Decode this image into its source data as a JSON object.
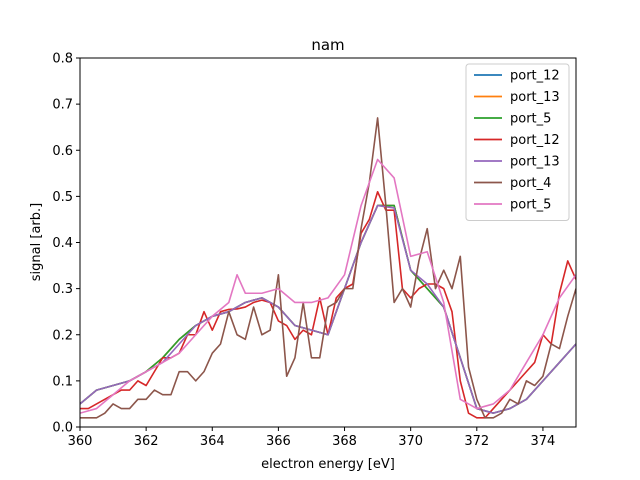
{
  "chart_data": {
    "type": "line",
    "title": "nam",
    "xlabel": "electron energy [eV]",
    "ylabel": "signal [arb.]",
    "xlim": [
      360,
      375
    ],
    "ylim": [
      0,
      0.8
    ],
    "xticks": [
      "360",
      "362",
      "364",
      "366",
      "368",
      "370",
      "372",
      "374"
    ],
    "yticks": [
      "0.0",
      "0.1",
      "0.2",
      "0.3",
      "0.4",
      "0.5",
      "0.6",
      "0.7",
      "0.8"
    ],
    "legend_position": "top-right",
    "series": [
      {
        "name": "port_12",
        "color": "#1f77b4",
        "x": [
          360,
          360.5,
          361,
          361.5,
          362,
          362.5,
          363,
          363.5,
          364,
          364.5,
          365,
          365.5,
          366,
          366.5,
          367,
          367.5,
          368,
          368.5,
          369,
          369.5,
          370,
          370.5,
          371,
          371.5,
          372,
          372.5,
          373,
          373.5,
          374,
          374.5,
          375
        ],
        "y": [
          0.05,
          0.08,
          0.09,
          0.1,
          0.12,
          0.15,
          0.19,
          0.22,
          0.24,
          0.25,
          0.27,
          0.28,
          0.26,
          0.22,
          0.21,
          0.2,
          0.3,
          0.4,
          0.48,
          0.48,
          0.34,
          0.3,
          0.26,
          0.15,
          0.04,
          0.03,
          0.04,
          0.06,
          0.1,
          0.14,
          0.18
        ]
      },
      {
        "name": "port_13",
        "color": "#ff7f0e",
        "x": [
          360,
          360.5,
          361,
          361.5,
          362,
          362.5,
          363,
          363.5,
          364,
          364.5,
          365,
          365.5,
          366,
          366.5,
          367,
          367.5,
          368,
          368.5,
          369,
          369.5,
          370,
          370.5,
          371,
          371.5,
          372,
          372.5,
          373,
          373.5,
          374,
          374.5,
          375
        ],
        "y": [
          0.05,
          0.08,
          0.09,
          0.1,
          0.12,
          0.15,
          0.19,
          0.22,
          0.24,
          0.25,
          0.27,
          0.28,
          0.26,
          0.22,
          0.21,
          0.2,
          0.3,
          0.4,
          0.48,
          0.48,
          0.34,
          0.3,
          0.26,
          0.15,
          0.04,
          0.03,
          0.04,
          0.06,
          0.1,
          0.14,
          0.18
        ]
      },
      {
        "name": "port_5",
        "color": "#2ca02c",
        "x": [
          360,
          360.5,
          361,
          361.5,
          362,
          362.5,
          363,
          363.5,
          364,
          364.5,
          365,
          365.5,
          366,
          366.5,
          367,
          367.5,
          368,
          368.5,
          369,
          369.5,
          370,
          370.5,
          371,
          371.5,
          372,
          372.5,
          373,
          373.5,
          374,
          374.5,
          375
        ],
        "y": [
          0.05,
          0.08,
          0.09,
          0.1,
          0.12,
          0.15,
          0.19,
          0.22,
          0.24,
          0.25,
          0.27,
          0.28,
          0.26,
          0.22,
          0.21,
          0.2,
          0.3,
          0.4,
          0.48,
          0.48,
          0.34,
          0.3,
          0.26,
          0.15,
          0.04,
          0.03,
          0.04,
          0.06,
          0.1,
          0.14,
          0.18
        ]
      },
      {
        "name": "port_12",
        "color": "#d62728",
        "x": [
          360,
          360.25,
          360.5,
          360.75,
          361,
          361.25,
          361.5,
          361.75,
          362,
          362.25,
          362.5,
          362.75,
          363,
          363.25,
          363.5,
          363.75,
          364,
          364.25,
          364.5,
          364.75,
          365,
          365.25,
          365.5,
          365.75,
          366,
          366.25,
          366.5,
          366.75,
          367,
          367.25,
          367.5,
          367.75,
          368,
          368.25,
          368.5,
          368.75,
          369,
          369.25,
          369.5,
          369.75,
          370,
          370.25,
          370.5,
          370.75,
          371,
          371.25,
          371.5,
          371.75,
          372,
          372.25,
          372.5,
          372.75,
          373,
          373.25,
          373.5,
          373.75,
          374,
          374.25,
          374.5,
          374.75,
          375
        ],
        "y": [
          0.04,
          0.04,
          0.05,
          0.06,
          0.07,
          0.08,
          0.08,
          0.1,
          0.09,
          0.12,
          0.15,
          0.15,
          0.16,
          0.2,
          0.2,
          0.25,
          0.21,
          0.25,
          0.255,
          0.256,
          0.26,
          0.27,
          0.275,
          0.27,
          0.23,
          0.22,
          0.19,
          0.21,
          0.2,
          0.28,
          0.2,
          0.28,
          0.3,
          0.31,
          0.42,
          0.45,
          0.51,
          0.47,
          0.47,
          0.3,
          0.28,
          0.3,
          0.31,
          0.31,
          0.3,
          0.25,
          0.1,
          0.03,
          0.02,
          0.02,
          0.04,
          0.06,
          0.08,
          0.1,
          0.12,
          0.14,
          0.2,
          0.18,
          0.29,
          0.36,
          0.32
        ]
      },
      {
        "name": "port_13",
        "color": "#9467bd",
        "x": [
          360,
          360.5,
          361,
          361.5,
          362,
          362.5,
          363,
          363.5,
          364,
          364.5,
          365,
          365.5,
          366,
          366.5,
          367,
          367.5,
          368,
          368.5,
          369,
          369.5,
          370,
          370.5,
          371,
          371.5,
          372,
          372.5,
          373,
          373.5,
          374,
          374.5,
          375
        ],
        "y": [
          0.05,
          0.08,
          0.09,
          0.1,
          0.12,
          0.14,
          0.18,
          0.22,
          0.24,
          0.25,
          0.27,
          0.28,
          0.26,
          0.22,
          0.21,
          0.2,
          0.3,
          0.4,
          0.48,
          0.475,
          0.34,
          0.31,
          0.26,
          0.15,
          0.04,
          0.03,
          0.04,
          0.06,
          0.1,
          0.14,
          0.18
        ]
      },
      {
        "name": "port_4",
        "color": "#8c564b",
        "x": [
          360,
          360.25,
          360.5,
          360.75,
          361,
          361.25,
          361.5,
          361.75,
          362,
          362.25,
          362.5,
          362.75,
          363,
          363.25,
          363.5,
          363.75,
          364,
          364.25,
          364.5,
          364.75,
          365,
          365.25,
          365.5,
          365.75,
          366,
          366.25,
          366.5,
          366.75,
          367,
          367.25,
          367.5,
          367.75,
          368,
          368.25,
          368.5,
          368.75,
          369,
          369.25,
          369.5,
          369.75,
          370,
          370.25,
          370.5,
          370.75,
          371,
          371.25,
          371.5,
          371.75,
          372,
          372.25,
          372.5,
          372.75,
          373,
          373.25,
          373.5,
          373.75,
          374,
          374.25,
          374.5,
          374.75,
          375
        ],
        "y": [
          0.02,
          0.02,
          0.02,
          0.03,
          0.05,
          0.04,
          0.04,
          0.06,
          0.06,
          0.08,
          0.07,
          0.07,
          0.12,
          0.12,
          0.1,
          0.12,
          0.16,
          0.18,
          0.25,
          0.2,
          0.19,
          0.26,
          0.2,
          0.21,
          0.33,
          0.11,
          0.15,
          0.27,
          0.15,
          0.15,
          0.26,
          0.27,
          0.3,
          0.3,
          0.43,
          0.53,
          0.67,
          0.48,
          0.27,
          0.3,
          0.26,
          0.36,
          0.43,
          0.3,
          0.34,
          0.3,
          0.37,
          0.13,
          0.06,
          0.02,
          0.02,
          0.03,
          0.06,
          0.05,
          0.1,
          0.09,
          0.11,
          0.18,
          0.17,
          0.24,
          0.3
        ]
      },
      {
        "name": "port_5",
        "color": "#e377c2",
        "x": [
          360,
          360.5,
          361,
          361.5,
          362,
          362.5,
          363,
          363.5,
          364,
          364.5,
          364.75,
          365,
          365.5,
          366,
          366.5,
          367,
          367.5,
          368,
          368.5,
          369,
          369.5,
          370,
          370.5,
          371,
          371.5,
          372,
          372.5,
          373,
          373.5,
          374,
          374.5,
          375
        ],
        "y": [
          0.03,
          0.04,
          0.07,
          0.1,
          0.12,
          0.14,
          0.16,
          0.2,
          0.24,
          0.27,
          0.33,
          0.29,
          0.29,
          0.3,
          0.27,
          0.27,
          0.28,
          0.33,
          0.48,
          0.58,
          0.54,
          0.37,
          0.38,
          0.27,
          0.06,
          0.04,
          0.05,
          0.08,
          0.14,
          0.2,
          0.28,
          0.33
        ]
      }
    ]
  }
}
